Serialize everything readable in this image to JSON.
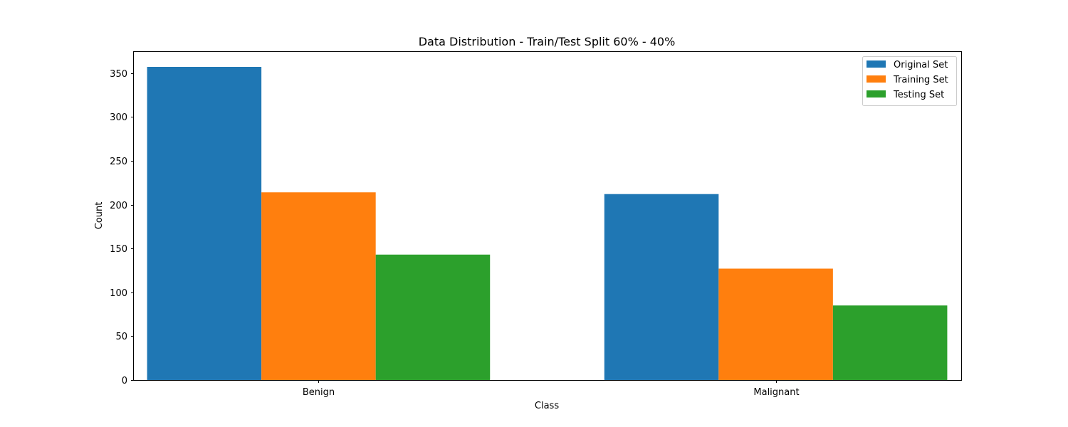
{
  "chart_data": {
    "type": "bar",
    "title": "Data Distribution - Train/Test Split 60% - 40%",
    "xlabel": "Class",
    "ylabel": "Count",
    "categories": [
      "Benign",
      "Malignant"
    ],
    "series": [
      {
        "name": "Original Set",
        "values": [
          357,
          212
        ],
        "color": "#1f77b4"
      },
      {
        "name": "Training Set",
        "values": [
          214,
          127
        ],
        "color": "#ff7f0e"
      },
      {
        "name": "Testing Set",
        "values": [
          143,
          85
        ],
        "color": "#2ca02c"
      }
    ],
    "ylim": [
      0,
      374.85
    ],
    "yticks": [
      0,
      50,
      100,
      150,
      200,
      250,
      300,
      350
    ],
    "grid": false,
    "legend_position": "top-right"
  }
}
